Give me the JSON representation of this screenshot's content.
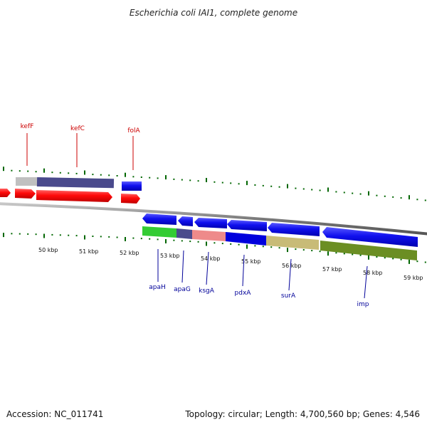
{
  "title": "Escherichia coli IAI1, complete genome",
  "footer": {
    "accession": "Accession: NC_011741",
    "summary": "Topology: circular; Length: 4,700,560 bp; Genes: 4,546"
  },
  "scale": {
    "labels": [
      "50 kbp",
      "51 kbp",
      "52 kbp",
      "53 kbp",
      "54 kbp",
      "55 kbp",
      "56 kbp",
      "57 kbp",
      "58 kbp",
      "59 kbp"
    ]
  },
  "genes_top": [
    {
      "name": "kefF",
      "color": "#cc0000"
    },
    {
      "name": "kefC",
      "color": "#cc0000"
    },
    {
      "name": "folA",
      "color": "#cc0000"
    }
  ],
  "genes_bottom": [
    {
      "name": "apaH",
      "color": "#000099"
    },
    {
      "name": "apaG",
      "color": "#000099"
    },
    {
      "name": "ksgA",
      "color": "#000099"
    },
    {
      "name": "pdxA",
      "color": "#000099"
    },
    {
      "name": "surA",
      "color": "#000099"
    },
    {
      "name": "imp",
      "color": "#000099"
    }
  ],
  "colors": {
    "forward_cds": "#ee0000",
    "reverse_cds": "#0000dd",
    "backbone": "#777777",
    "tick": "#006600"
  }
}
